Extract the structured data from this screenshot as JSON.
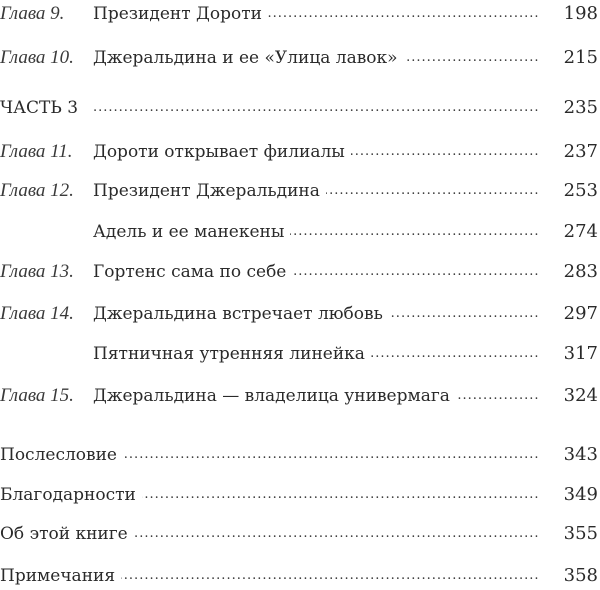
{
  "entries": [
    {
      "label": "Глава 9.",
      "title": "Президент Дороти",
      "page": "198"
    },
    {
      "label": "Глава 10.",
      "title": "Джеральдина и ее «Улица лавок»",
      "page": "215"
    },
    {
      "label": "",
      "title": "ЧАСТЬ 3",
      "page": "235"
    },
    {
      "label": "Глава 11.",
      "title": "Дороти открывает филиалы",
      "page": "237"
    },
    {
      "label": "Глава 12.",
      "title": "Президент Джеральдина",
      "page": "253"
    },
    {
      "label": "",
      "title": "Адель и ее манекены",
      "page": "274"
    },
    {
      "label": "Глава 13.",
      "title": "Гортенс сама по себе",
      "page": "283"
    },
    {
      "label": "Глава 14.",
      "title": "Джеральдина встречает любовь",
      "page": "297"
    },
    {
      "label": "",
      "title": "Пятничная утренняя линейка",
      "page": "317"
    },
    {
      "label": "Глава 15.",
      "title": "Джеральдина — владелица универмага",
      "page": "324"
    },
    {
      "label": "",
      "title": "Послесловие",
      "page": "343"
    },
    {
      "label": "",
      "title": "Благодарности",
      "page": "349"
    },
    {
      "label": "",
      "title": "Об этой книге",
      "page": "355"
    },
    {
      "label": "",
      "title": "Примечания",
      "page": "358"
    }
  ]
}
